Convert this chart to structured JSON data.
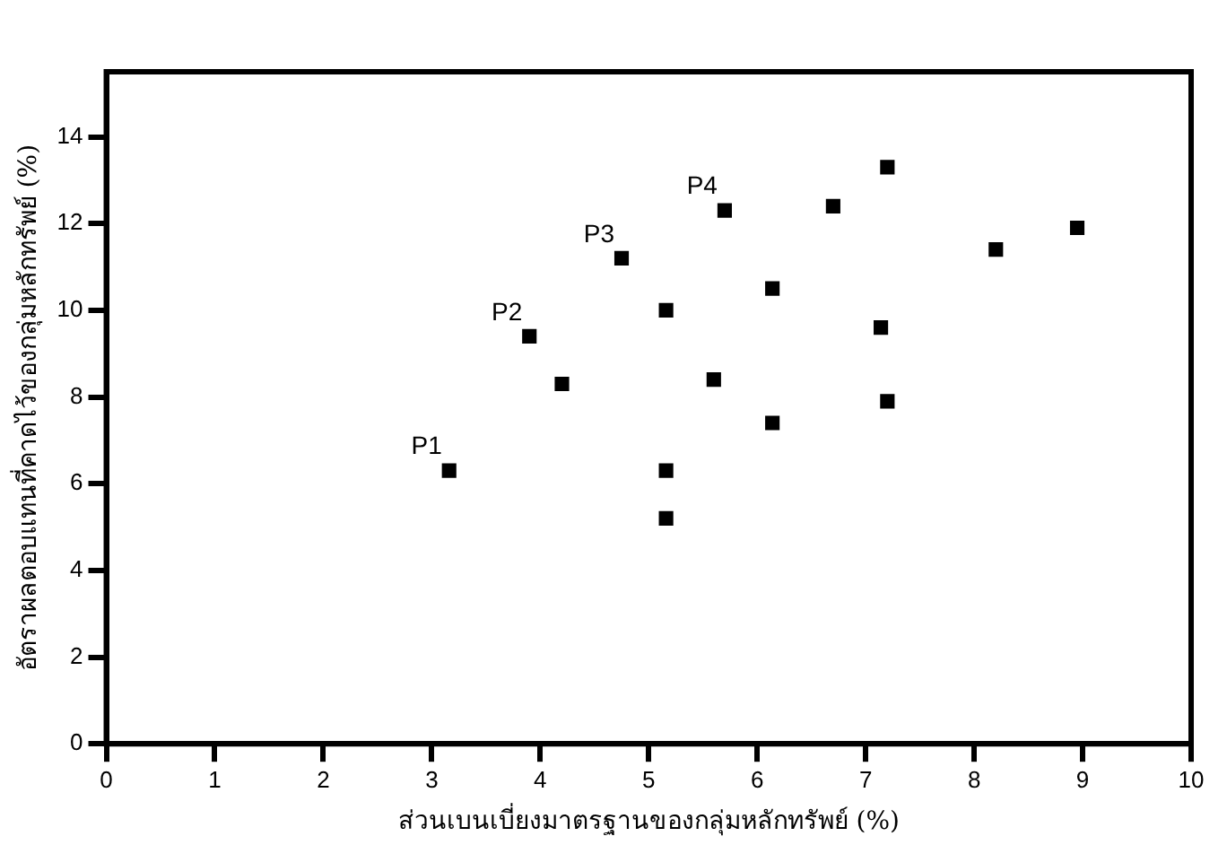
{
  "chart_data": {
    "type": "scatter",
    "xlabel": "ส่วนเบนเบี่ยงมาตรฐานของกลุ่มหลักทรัพย์ (%)",
    "ylabel": "อัตราผลตอบแทนที่คาดไว้ของกลุ่มหลักทรัพย์ (%)",
    "x": [
      3.16,
      3.9,
      4.2,
      4.75,
      5.16,
      5.16,
      5.16,
      5.6,
      5.7,
      6.14,
      6.14,
      6.7,
      7.2,
      7.14,
      7.2,
      8.2,
      8.95
    ],
    "series": [
      {
        "color": "#000000",
        "values": [
          6.3,
          9.4,
          8.3,
          11.2,
          10.0,
          6.3,
          5.2,
          8.4,
          12.3,
          10.5,
          7.4,
          12.4,
          13.3,
          9.6,
          7.9,
          11.4,
          11.9
        ]
      }
    ],
    "xlim": [
      0,
      10
    ],
    "xticks": [
      0,
      1,
      2,
      3,
      4,
      5,
      6,
      7,
      8,
      9,
      10
    ],
    "ylim": [
      0,
      15.5
    ],
    "yticks": [
      0,
      2,
      4,
      6,
      8,
      10,
      12,
      14
    ],
    "marker": "square",
    "grid": false,
    "legend": false,
    "annotations": [
      {
        "text": "P1",
        "x": 3.16,
        "y": 6.3
      },
      {
        "text": "P2",
        "x": 3.9,
        "y": 9.4
      },
      {
        "text": "P3",
        "x": 4.75,
        "y": 11.2
      },
      {
        "text": "P4",
        "x": 5.7,
        "y": 12.3
      }
    ]
  }
}
